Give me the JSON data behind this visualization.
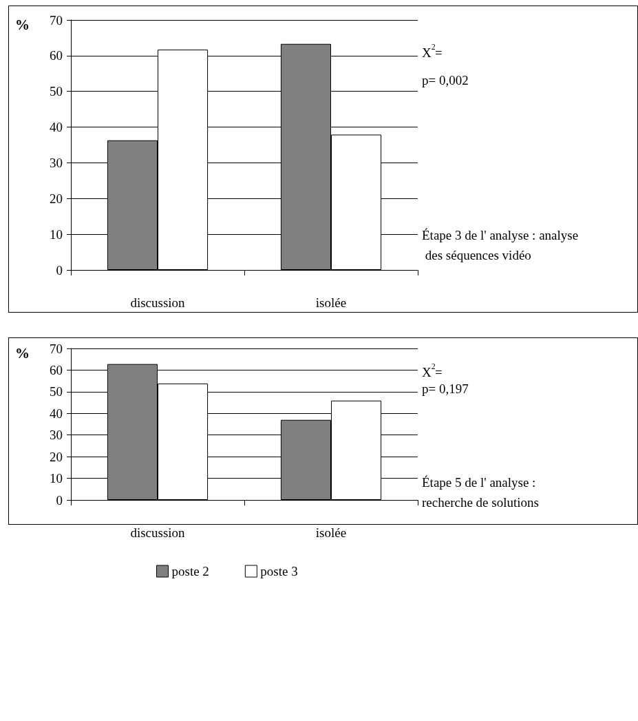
{
  "chart_data": [
    {
      "type": "bar",
      "ylabel": "%",
      "categories": [
        "discussion",
        "isolée"
      ],
      "series": [
        {
          "color": "#808080",
          "values": [
            36.3,
            63.3
          ]
        },
        {
          "color": "#ffffff",
          "values": [
            61.7,
            37.9
          ]
        }
      ],
      "ylim": [
        0,
        70
      ],
      "yticks": [
        0,
        10,
        20,
        30,
        40,
        50,
        60,
        70
      ],
      "grid": "y",
      "legend": false,
      "annotations": [
        "X$^{2}$=",
        "p= 0,002",
        "Étape 3 de l' analyse : analyse des séquences vidéo"
      ]
    },
    {
      "type": "bar",
      "ylabel": "%",
      "categories": [
        "discussion",
        "isolée"
      ],
      "series": [
        {
          "name": "poste 2",
          "color": "#808080",
          "values": [
            62.8,
            37.0
          ]
        },
        {
          "name": "poste 3",
          "color": "#ffffff",
          "values": [
            53.8,
            45.9
          ]
        }
      ],
      "ylim": [
        0,
        70
      ],
      "yticks": [
        0,
        10,
        20,
        30,
        40,
        50,
        60,
        70
      ],
      "grid": "y",
      "legend": "bottom",
      "annotations": [
        "X$^{2}$=",
        "p= 0,197",
        "Étape 5 de l' analyse : recherche de solutions"
      ]
    }
  ]
}
